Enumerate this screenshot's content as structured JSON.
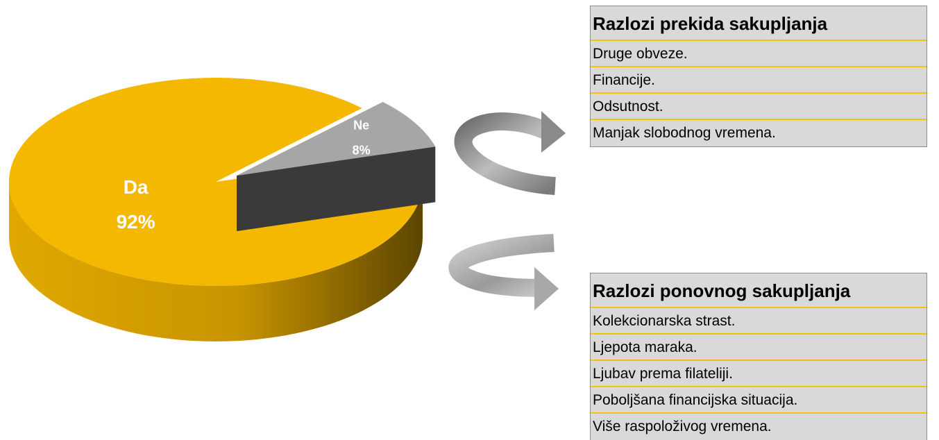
{
  "chart_data": {
    "type": "pie",
    "categories": [
      "Da",
      "Ne"
    ],
    "values": [
      92,
      8
    ],
    "value_labels": [
      "92%",
      "8%"
    ],
    "colors": [
      "#f5b800",
      "#a6a6a6"
    ],
    "exploded": [
      false,
      true
    ]
  },
  "tables": [
    {
      "title": "Razlozi  prekida sakupljanja",
      "rows": [
        "Druge obveze.",
        "Financije.",
        "Odsutnost.",
        "Manjak slobodnog vremena."
      ]
    },
    {
      "title": "Razlozi  ponovnog sakupljanja",
      "rows": [
        "Kolekcionarska strast.",
        "Ljepota maraka.",
        "Ljubav prema filateliji.",
        "Poboljšana financijska situacija.",
        "Više raspoloživog vremena."
      ]
    }
  ]
}
